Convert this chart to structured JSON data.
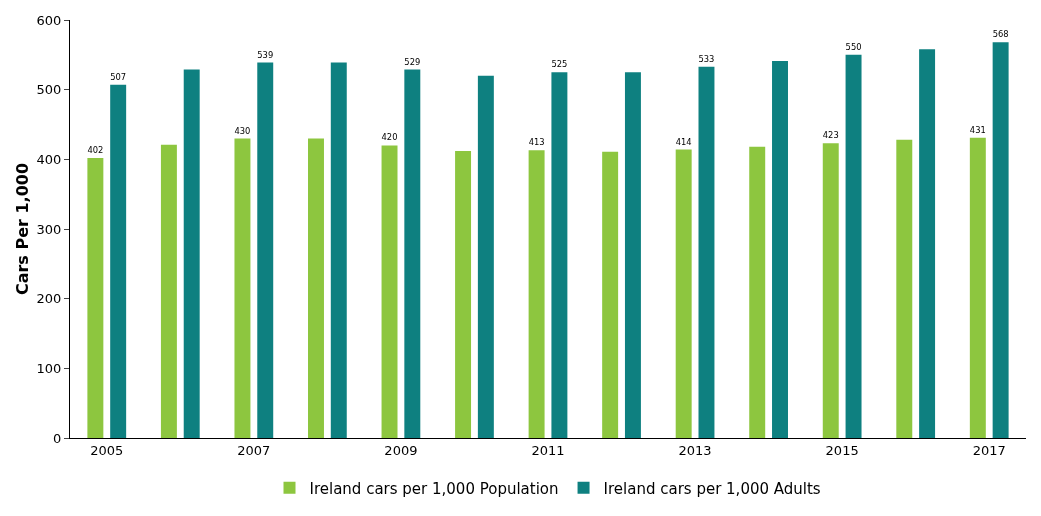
{
  "chart_data": {
    "type": "bar",
    "ylabel": "Cars Per 1,000",
    "categories": [
      "2005",
      null,
      "2007",
      null,
      "2009",
      null,
      "2011",
      null,
      "2013",
      null,
      "2015",
      null,
      "2017"
    ],
    "series": [
      {
        "name": "Ireland cars per 1,000 Population",
        "color": "#8dc63f",
        "values": [
          402,
          421,
          430,
          430,
          420,
          412,
          413,
          411,
          414,
          418,
          423,
          428,
          431
        ],
        "value_labels": [
          "402",
          null,
          "430",
          null,
          "420",
          null,
          "413",
          null,
          "414",
          null,
          "423",
          null,
          "431"
        ]
      },
      {
        "name": "Ireland cars per 1,000 Adults",
        "color": "#0e8080",
        "values": [
          507,
          529,
          539,
          539,
          529,
          520,
          525,
          525,
          533,
          541,
          550,
          558,
          568
        ],
        "value_labels": [
          "507",
          null,
          "539",
          null,
          "529",
          null,
          "525",
          null,
          "533",
          null,
          "550",
          null,
          "568"
        ]
      }
    ],
    "ylim": [
      0,
      600
    ],
    "yticks": [
      0,
      100,
      200,
      300,
      400,
      500,
      600
    ],
    "grid": false,
    "legend": "bottom"
  }
}
